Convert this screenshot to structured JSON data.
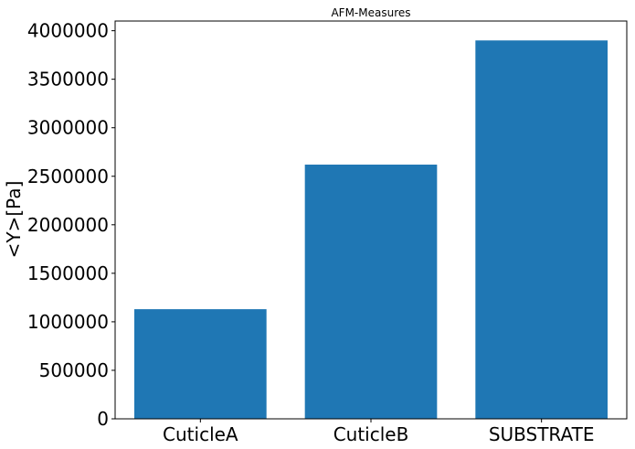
{
  "chart_data": {
    "type": "bar",
    "title": "AFM-Measures",
    "xlabel": "",
    "ylabel": "<Y>[Pa]",
    "categories": [
      "CuticleA",
      "CuticleB",
      "SUBSTRATE"
    ],
    "values": [
      1130000,
      2620000,
      3900000
    ],
    "ylim": [
      0,
      4100000
    ],
    "yticks": [
      0,
      500000,
      1000000,
      1500000,
      2000000,
      2500000,
      3000000,
      3500000,
      4000000
    ],
    "ytick_labels": [
      "0",
      "500000",
      "1000000",
      "1500000",
      "2000000",
      "2500000",
      "3000000",
      "3500000",
      "4000000"
    ],
    "bar_color": "#1f77b4",
    "grid": false,
    "legend": "none"
  }
}
